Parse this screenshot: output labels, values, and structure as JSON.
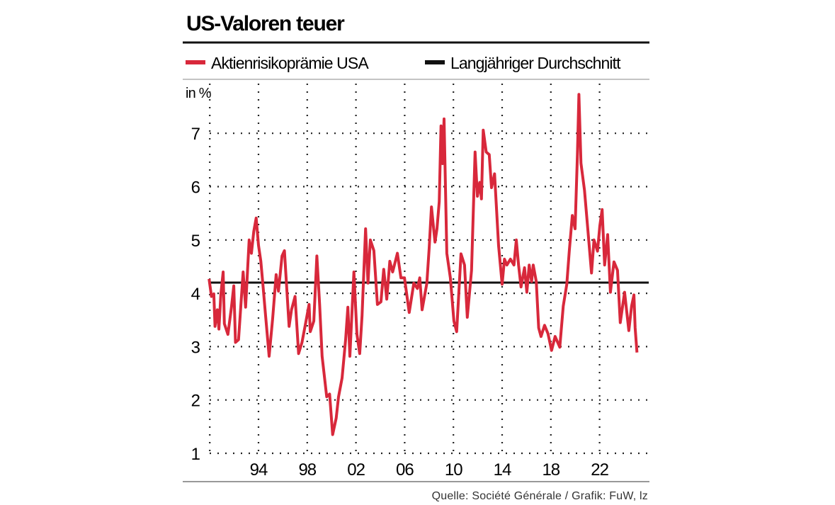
{
  "chart_data": {
    "type": "line",
    "title": "US-Valoren teuer",
    "ylabel": "in %",
    "xlabel": "",
    "ylim": [
      1,
      7.8
    ],
    "xlim": [
      1990,
      2026
    ],
    "y_ticks": [
      "1",
      "2",
      "3",
      "4",
      "5",
      "6",
      "7"
    ],
    "y_tick_values": [
      1,
      2,
      3,
      4,
      5,
      6,
      7
    ],
    "x_ticks": [
      "94",
      "98",
      "02",
      "06",
      "10",
      "14",
      "18",
      "22"
    ],
    "x_tick_values": [
      1994,
      1998,
      2002,
      2006,
      2010,
      2014,
      2018,
      2022
    ],
    "grid": true,
    "legend_position": "top",
    "source": "Quelle: Société Générale / Grafik: FuW, lz",
    "colors": {
      "risk_premium": "#d8283b",
      "average": "#111111"
    },
    "series": [
      {
        "name": "Aktienrisikoprämie USA",
        "x": [
          1989.94,
          1990.14,
          1990.33,
          1990.43,
          1990.62,
          1990.75,
          1990.91,
          1991.1,
          1991.2,
          1991.49,
          1991.78,
          1991.97,
          1992.11,
          1992.36,
          1992.74,
          1992.94,
          1993.23,
          1993.42,
          1993.61,
          1993.81,
          1994.0,
          1994.19,
          1994.39,
          1994.58,
          1994.87,
          1995.16,
          1995.45,
          1995.64,
          1995.93,
          1996.13,
          1996.32,
          1996.51,
          1996.71,
          1997.0,
          1997.29,
          1997.57,
          1997.86,
          1998.15,
          1998.25,
          1998.54,
          1998.79,
          1999.02,
          1999.22,
          1999.6,
          1999.84,
          2000.09,
          2000.38,
          2000.57,
          2000.86,
          2001.15,
          2001.34,
          2001.5,
          2001.83,
          2002.08,
          2002.31,
          2002.5,
          2002.79,
          2002.99,
          2003.18,
          2003.47,
          2003.76,
          2004.05,
          2004.28,
          2004.53,
          2004.78,
          2005.01,
          2005.4,
          2005.69,
          2005.98,
          2006.37,
          2006.75,
          2007.04,
          2007.24,
          2007.43,
          2007.82,
          2008.01,
          2008.2,
          2008.49,
          2008.65,
          2008.84,
          2008.98,
          2009.11,
          2009.23,
          2009.46,
          2009.75,
          2010.04,
          2010.27,
          2010.62,
          2010.91,
          2011.14,
          2011.49,
          2011.78,
          2011.97,
          2012.16,
          2012.3,
          2012.45,
          2012.69,
          2012.94,
          2013.13,
          2013.38,
          2013.71,
          2014.0,
          2014.19,
          2014.39,
          2014.68,
          2014.97,
          2015.16,
          2015.35,
          2015.55,
          2015.84,
          2016.03,
          2016.22,
          2016.42,
          2016.55,
          2016.8,
          2017.0,
          2017.19,
          2017.48,
          2017.77,
          2018.06,
          2018.35,
          2018.73,
          2019.02,
          2019.31,
          2019.51,
          2019.76,
          2019.99,
          2020.18,
          2020.3,
          2020.47,
          2020.76,
          2021.05,
          2021.34,
          2021.54,
          2021.83,
          2022.02,
          2022.21,
          2022.41,
          2022.66,
          2022.89,
          2023.18,
          2023.47,
          2023.7,
          2024.05,
          2024.4,
          2024.63,
          2024.82,
          2024.92,
          2025.07
        ],
        "values": [
          4.27,
          3.94,
          3.99,
          3.38,
          3.69,
          3.33,
          3.99,
          4.4,
          3.43,
          3.23,
          3.74,
          4.14,
          3.08,
          3.13,
          4.4,
          3.74,
          5.0,
          4.75,
          5.16,
          5.41,
          4.9,
          4.6,
          4.09,
          3.58,
          2.82,
          3.53,
          4.35,
          4.04,
          4.7,
          4.8,
          4.09,
          3.38,
          3.69,
          3.94,
          2.87,
          3.08,
          3.43,
          3.79,
          3.28,
          3.48,
          4.7,
          3.79,
          2.82,
          2.06,
          2.11,
          1.35,
          1.66,
          2.06,
          2.41,
          3.13,
          3.74,
          2.82,
          4.4,
          3.23,
          2.87,
          3.58,
          5.21,
          4.19,
          5.0,
          4.8,
          3.79,
          3.84,
          4.45,
          3.89,
          4.6,
          4.4,
          4.75,
          4.29,
          4.29,
          3.64,
          4.19,
          4.09,
          4.29,
          3.69,
          4.19,
          4.85,
          5.62,
          4.96,
          5.21,
          5.72,
          7.14,
          6.43,
          7.27,
          4.75,
          4.29,
          3.48,
          3.28,
          4.74,
          4.53,
          3.55,
          4.43,
          6.65,
          5.82,
          6.08,
          5.77,
          7.06,
          6.65,
          6.6,
          5.98,
          6.24,
          4.89,
          4.17,
          4.64,
          4.53,
          4.64,
          4.53,
          5.0,
          4.53,
          4.12,
          4.48,
          4.02,
          4.53,
          4.22,
          4.53,
          4.22,
          3.35,
          3.19,
          3.4,
          3.24,
          2.93,
          3.19,
          2.99,
          3.76,
          4.17,
          4.79,
          5.46,
          5.21,
          6.6,
          7.73,
          6.44,
          5.93,
          5.15,
          4.38,
          5.0,
          4.79,
          5.26,
          5.57,
          4.53,
          5.1,
          4.02,
          4.59,
          4.43,
          3.45,
          4.02,
          3.3,
          3.76,
          3.97,
          3.35,
          2.89
        ]
      },
      {
        "name": "Langjähriger Durchschnitt",
        "x": [
          1990,
          2026
        ],
        "values": [
          4.2,
          4.2
        ]
      }
    ]
  }
}
